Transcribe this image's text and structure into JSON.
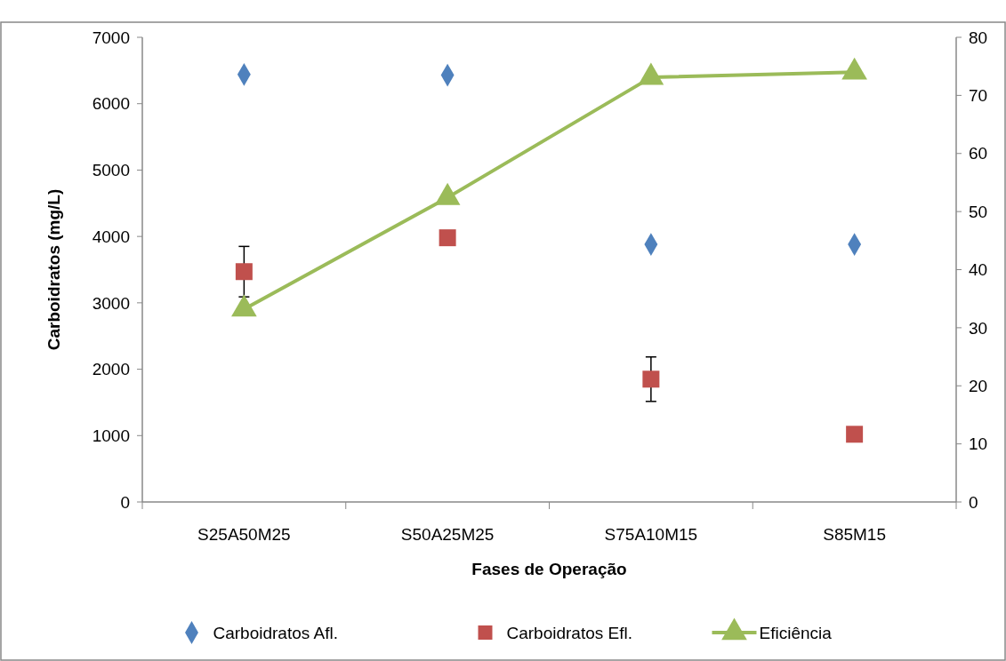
{
  "chart_data": {
    "type": "scatter",
    "xlabel": "Fases de Operação",
    "ylabel": "Carboidratos (mg/L)",
    "categories": [
      "S25A50M25",
      "S50A25M25",
      "S75A10M15",
      "S85M15"
    ],
    "series": [
      {
        "name": "Carboidratos Afl.",
        "color": "#4f81bd",
        "marker": "diamond",
        "values": [
          6440,
          6430,
          3880,
          3880
        ]
      },
      {
        "name": "Carboidratos Efl.",
        "color": "#c0504d",
        "marker": "square",
        "values": [
          3470,
          3980,
          1850,
          1020
        ],
        "errors": [
          380,
          null,
          335,
          null
        ]
      },
      {
        "name": "Eficiência",
        "type": "line",
        "axis": "y2",
        "color": "#9bbb59",
        "marker": "triangle",
        "values": [
          33.2,
          52.4,
          73.1,
          74.0
        ]
      }
    ],
    "ylim": [
      0,
      7000
    ],
    "yticks": [
      0,
      1000,
      2000,
      3000,
      4000,
      5000,
      6000,
      7000
    ],
    "y2lim": [
      0,
      80
    ],
    "y2ticks": [
      0,
      10,
      20,
      30,
      40,
      50,
      60,
      70,
      80
    ],
    "legend": "bottom",
    "grid": false
  }
}
